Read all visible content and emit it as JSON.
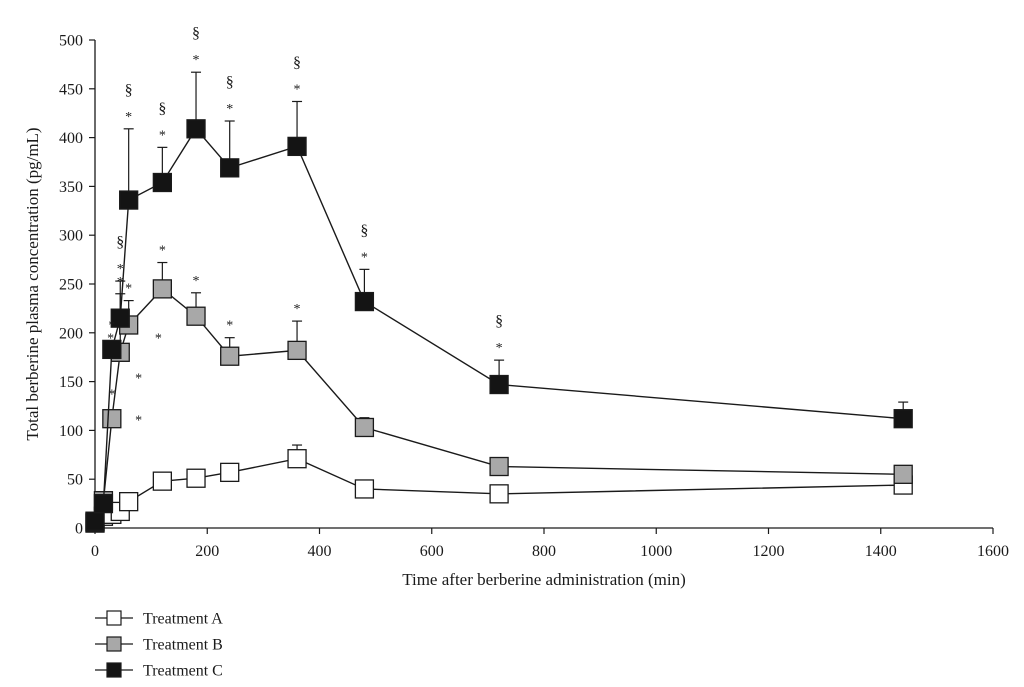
{
  "chart_data": {
    "type": "line",
    "xlabel": "Time after berberine administration (min)",
    "ylabel": "Total berberine plasma concentration (pg/mL)",
    "xlim": [
      0,
      1600
    ],
    "ylim": [
      0,
      500
    ],
    "x_ticks": [
      0,
      200,
      400,
      600,
      800,
      1000,
      1200,
      1400,
      1600
    ],
    "y_ticks": [
      0,
      50,
      100,
      150,
      200,
      250,
      300,
      350,
      400,
      450,
      500
    ],
    "grid": false,
    "legend_position": "bottom-left",
    "series": [
      {
        "name": "Treatment A",
        "marker": "square-open",
        "fill": "#ffffff",
        "points": [
          {
            "x": 0,
            "y": 5,
            "err": 0,
            "star": false,
            "section": false
          },
          {
            "x": 15,
            "y": 12,
            "err": 0,
            "star": false,
            "section": false
          },
          {
            "x": 30,
            "y": 14,
            "err": 0,
            "star": false,
            "section": false
          },
          {
            "x": 45,
            "y": 17,
            "err": 0,
            "star": false,
            "section": false
          },
          {
            "x": 60,
            "y": 27,
            "err": 0,
            "star": false,
            "section": false
          },
          {
            "x": 120,
            "y": 48,
            "err": 0,
            "star": false,
            "section": false
          },
          {
            "x": 180,
            "y": 51,
            "err": 0,
            "star": false,
            "section": false
          },
          {
            "x": 240,
            "y": 57,
            "err": 9,
            "star": false,
            "section": false
          },
          {
            "x": 360,
            "y": 71,
            "err": 14,
            "star": false,
            "section": false
          },
          {
            "x": 480,
            "y": 40,
            "err": 0,
            "star": false,
            "section": false
          },
          {
            "x": 720,
            "y": 35,
            "err": 0,
            "star": false,
            "section": false
          },
          {
            "x": 1440,
            "y": 44,
            "err": 0,
            "star": false,
            "section": false
          }
        ]
      },
      {
        "name": "Treatment B",
        "marker": "square-gray",
        "fill": "#a8a8a8",
        "points": [
          {
            "x": 0,
            "y": 6,
            "err": 0,
            "star": false,
            "section": false
          },
          {
            "x": 15,
            "y": 28,
            "err": 0,
            "star": false,
            "section": false
          },
          {
            "x": 30,
            "y": 112,
            "err": 0,
            "star": true,
            "section": false
          },
          {
            "x": 45,
            "y": 180,
            "err": 60,
            "star": true,
            "section": false
          },
          {
            "x": 60,
            "y": 208,
            "err": 25,
            "star": true,
            "section": false
          },
          {
            "x": 120,
            "y": 245,
            "err": 27,
            "star": true,
            "section": false
          },
          {
            "x": 180,
            "y": 217,
            "err": 24,
            "star": true,
            "section": false
          },
          {
            "x": 240,
            "y": 176,
            "err": 19,
            "star": true,
            "section": false
          },
          {
            "x": 360,
            "y": 182,
            "err": 30,
            "star": true,
            "section": false
          },
          {
            "x": 480,
            "y": 103,
            "err": 10,
            "star": false,
            "section": false
          },
          {
            "x": 720,
            "y": 63,
            "err": 0,
            "star": false,
            "section": false
          },
          {
            "x": 1440,
            "y": 55,
            "err": 0,
            "star": false,
            "section": false
          }
        ]
      },
      {
        "name": "Treatment C",
        "marker": "square-black",
        "fill": "#141414",
        "points": [
          {
            "x": 0,
            "y": 7,
            "err": 0,
            "star": false,
            "section": false
          },
          {
            "x": 15,
            "y": 25,
            "err": 0,
            "star": false,
            "section": false
          },
          {
            "x": 30,
            "y": 183,
            "err": 0,
            "star": true,
            "section": false
          },
          {
            "x": 45,
            "y": 215,
            "err": 38,
            "star": true,
            "section": true
          },
          {
            "x": 60,
            "y": 336,
            "err": 73,
            "star": true,
            "section": true
          },
          {
            "x": 120,
            "y": 354,
            "err": 36,
            "star": true,
            "section": true
          },
          {
            "x": 180,
            "y": 409,
            "err": 58,
            "star": true,
            "section": true
          },
          {
            "x": 240,
            "y": 369,
            "err": 48,
            "star": true,
            "section": true
          },
          {
            "x": 360,
            "y": 391,
            "err": 46,
            "star": true,
            "section": true
          },
          {
            "x": 480,
            "y": 232,
            "err": 33,
            "star": true,
            "section": true
          },
          {
            "x": 720,
            "y": 147,
            "err": 25,
            "star": true,
            "section": true
          },
          {
            "x": 1440,
            "y": 112,
            "err": 17,
            "star": false,
            "section": false
          }
        ]
      }
    ],
    "extra_annotations": [
      {
        "text": "*",
        "x": 10,
        "y": 196
      },
      {
        "text": "*",
        "x": 95,
        "y": 196
      },
      {
        "text": "*",
        "x": 60,
        "y": 155
      },
      {
        "text": "*",
        "x": 60,
        "y": 112
      }
    ]
  }
}
